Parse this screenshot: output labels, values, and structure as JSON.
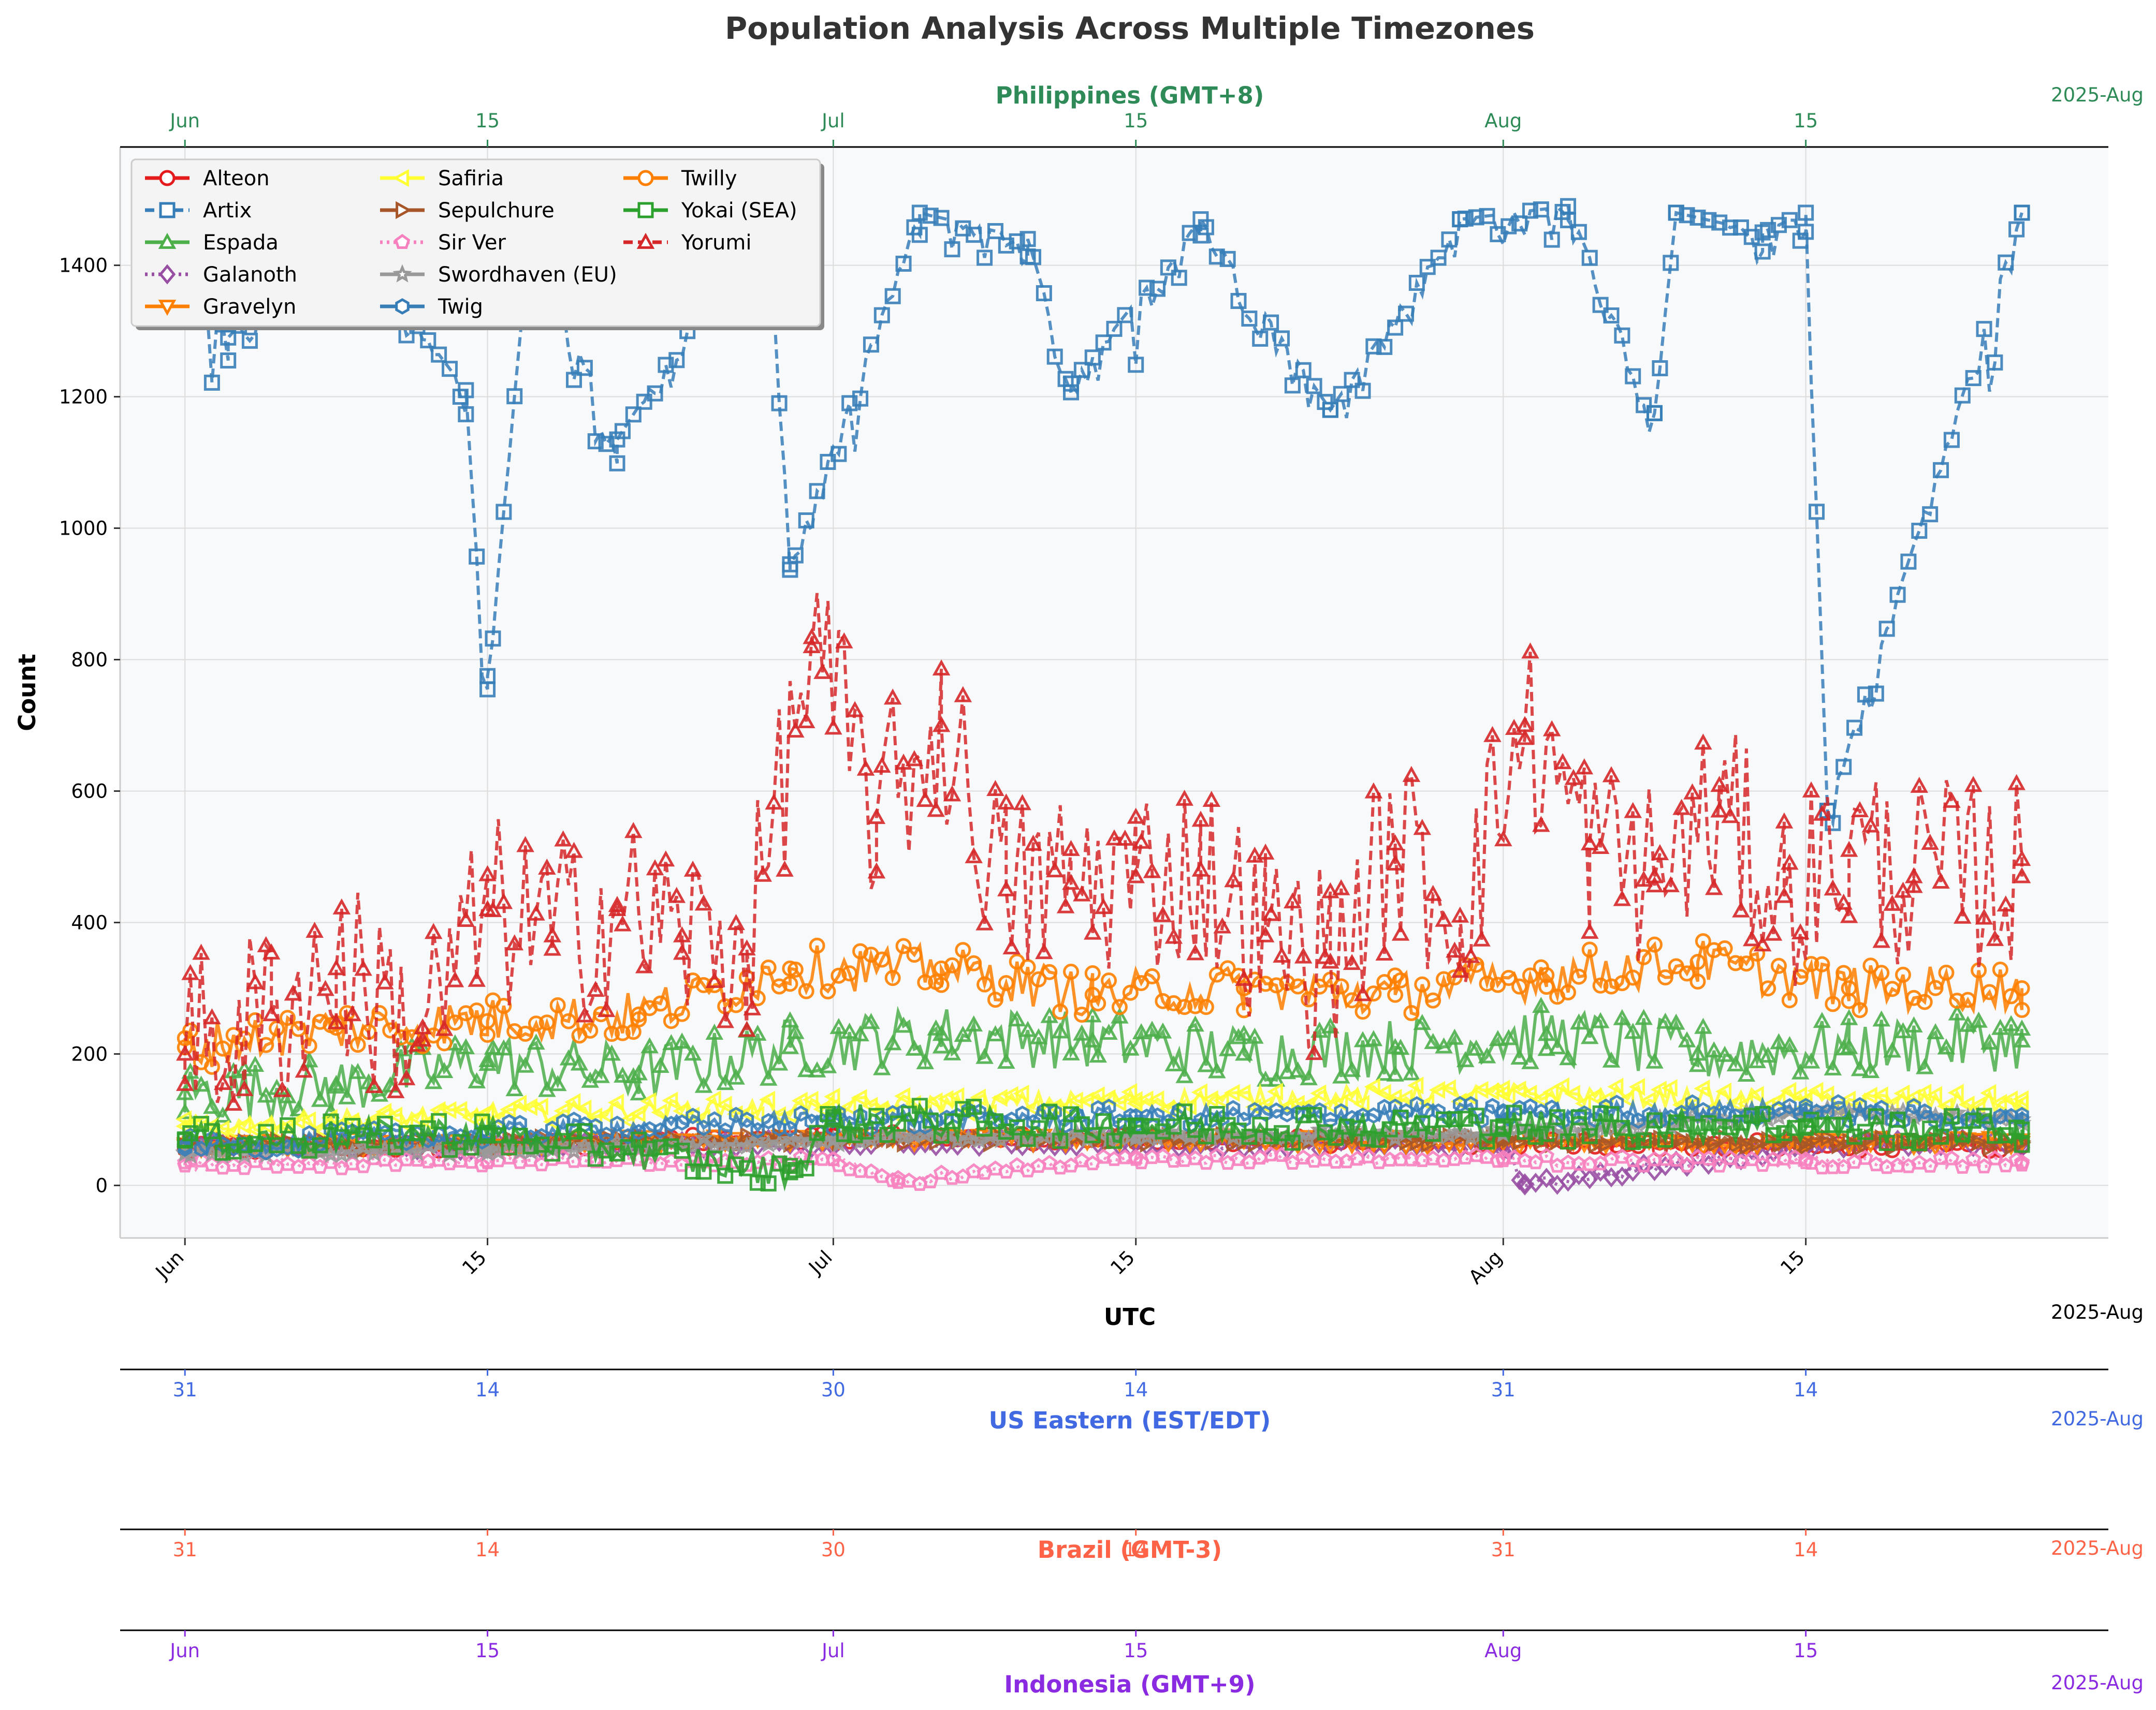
{
  "chart_data": {
    "type": "line",
    "title": "Population Analysis Across Multiple Timezones",
    "xlabel": "UTC",
    "ylabel": "Count",
    "ylim": [
      -80,
      1580
    ],
    "yticks": [
      0,
      200,
      400,
      600,
      800,
      1000,
      1200,
      1400
    ],
    "x_range": [
      "2025-05-29",
      "2025-08-29"
    ],
    "grid": true,
    "legend_placement": "top-left",
    "axes": [
      {
        "key": "utc",
        "title": "UTC",
        "color": "#000000",
        "year_label": "2025-Aug",
        "ticks": [
          {
            "date": "2025-06-01",
            "label": "Jun"
          },
          {
            "date": "2025-06-15",
            "label": "15"
          },
          {
            "date": "2025-07-01",
            "label": "Jul"
          },
          {
            "date": "2025-07-15",
            "label": "15"
          },
          {
            "date": "2025-08-01",
            "label": "Aug"
          },
          {
            "date": "2025-08-15",
            "label": "15"
          }
        ]
      },
      {
        "key": "philippines",
        "title": "Philippines (GMT+8)",
        "color": "#2e8b57",
        "year_label": "2025-Aug",
        "ticks": [
          {
            "date": "2025-06-01",
            "label": "Jun"
          },
          {
            "date": "2025-06-15",
            "label": "15"
          },
          {
            "date": "2025-07-01",
            "label": "Jul"
          },
          {
            "date": "2025-07-15",
            "label": "15"
          },
          {
            "date": "2025-08-01",
            "label": "Aug"
          },
          {
            "date": "2025-08-15",
            "label": "15"
          }
        ]
      },
      {
        "key": "us_eastern",
        "title": "US Eastern (EST/EDT)",
        "color": "#4169e1",
        "year_label": "2025-Aug",
        "ticks": [
          {
            "date": "2025-06-01",
            "label": "31"
          },
          {
            "date": "2025-06-15",
            "label": "14"
          },
          {
            "date": "2025-07-01",
            "label": "30"
          },
          {
            "date": "2025-07-15",
            "label": "14"
          },
          {
            "date": "2025-08-01",
            "label": "31"
          },
          {
            "date": "2025-08-15",
            "label": "14"
          }
        ]
      },
      {
        "key": "brazil",
        "title": "Brazil (GMT-3)",
        "color": "#ff6347",
        "year_label": "2025-Aug",
        "ticks": [
          {
            "date": "2025-06-01",
            "label": "31"
          },
          {
            "date": "2025-06-15",
            "label": "14"
          },
          {
            "date": "2025-07-01",
            "label": "30"
          },
          {
            "date": "2025-07-15",
            "label": "14"
          },
          {
            "date": "2025-08-01",
            "label": "31"
          },
          {
            "date": "2025-08-15",
            "label": "14"
          }
        ]
      },
      {
        "key": "indonesia",
        "title": "Indonesia (GMT+9)",
        "color": "#8a2be2",
        "year_label": "2025-Aug",
        "ticks": [
          {
            "date": "2025-06-01",
            "label": "Jun"
          },
          {
            "date": "2025-06-15",
            "label": "15"
          },
          {
            "date": "2025-07-01",
            "label": "Jul"
          },
          {
            "date": "2025-07-15",
            "label": "15"
          },
          {
            "date": "2025-08-01",
            "label": "Aug"
          },
          {
            "date": "2025-08-15",
            "label": "15"
          }
        ]
      }
    ],
    "series": [
      {
        "name": "Alteon",
        "color": "#e41a1c",
        "marker": "circle",
        "dash": "solid",
        "x": [
          "2025-06-01",
          "2025-06-15",
          "2025-07-01",
          "2025-07-15",
          "2025-08-01",
          "2025-08-15",
          "2025-08-25"
        ],
        "y": [
          55,
          60,
          75,
          70,
          65,
          60,
          60
        ]
      },
      {
        "name": "Artix",
        "color": "#377eb8",
        "marker": "square",
        "dash": "dashed",
        "x": [
          "2025-06-01",
          "2025-06-03",
          "2025-06-08",
          "2025-06-14",
          "2025-06-15",
          "2025-06-17",
          "2025-06-21",
          "2025-06-28",
          "2025-06-29",
          "2025-07-05",
          "2025-07-10",
          "2025-07-12",
          "2025-07-18",
          "2025-07-24",
          "2025-07-30",
          "2025-08-04",
          "2025-08-08",
          "2025-08-09",
          "2025-08-13",
          "2025-08-15",
          "2025-08-16",
          "2025-08-25"
        ],
        "y": [
          1450,
          1290,
          1470,
          1210,
          775,
          1460,
          1135,
          1490,
          945,
          1480,
          1440,
          1220,
          1470,
          1180,
          1470,
          1490,
          1175,
          1480,
          1450,
          1480,
          570,
          1480
        ]
      },
      {
        "name": "Espada",
        "color": "#4daf4a",
        "marker": "triangle-up",
        "dash": "solid",
        "x": [
          "2025-06-01",
          "2025-06-08",
          "2025-06-15",
          "2025-06-22",
          "2025-06-29",
          "2025-07-06",
          "2025-07-13",
          "2025-07-20",
          "2025-07-27",
          "2025-08-03",
          "2025-08-10",
          "2025-08-17",
          "2025-08-25"
        ],
        "y": [
          140,
          150,
          190,
          170,
          210,
          230,
          220,
          200,
          210,
          230,
          200,
          210,
          220
        ]
      },
      {
        "name": "Galanoth",
        "color": "#984ea3",
        "marker": "diamond",
        "dash": "dotted",
        "x": [
          "2025-06-01",
          "2025-06-15",
          "2025-07-01",
          "2025-07-15",
          "2025-08-01",
          "2025-08-02",
          "2025-08-15",
          "2025-08-25"
        ],
        "y": [
          60,
          60,
          65,
          65,
          60,
          0,
          60,
          65
        ]
      },
      {
        "name": "Gravelyn",
        "color": "#ff7f00",
        "marker": "triangle-down",
        "dash": "solid",
        "x": [
          "2025-06-01",
          "2025-06-15",
          "2025-07-01",
          "2025-07-15",
          "2025-08-01",
          "2025-08-15",
          "2025-08-25"
        ],
        "y": [
          60,
          65,
          70,
          70,
          65,
          65,
          65
        ]
      },
      {
        "name": "Safiria",
        "color": "#ffff33",
        "marker": "triangle-left",
        "dash": "solid",
        "x": [
          "2025-06-01",
          "2025-06-15",
          "2025-07-01",
          "2025-07-15",
          "2025-08-01",
          "2025-08-15",
          "2025-08-25"
        ],
        "y": [
          90,
          110,
          120,
          130,
          140,
          130,
          125
        ]
      },
      {
        "name": "Sepulchure",
        "color": "#a65628",
        "marker": "triangle-right",
        "dash": "solid",
        "x": [
          "2025-06-01",
          "2025-06-15",
          "2025-07-01",
          "2025-07-15",
          "2025-08-01",
          "2025-08-15",
          "2025-08-25"
        ],
        "y": [
          60,
          65,
          70,
          70,
          70,
          65,
          65
        ]
      },
      {
        "name": "Sir Ver",
        "color": "#f781bf",
        "marker": "pentagon",
        "dash": "dotted",
        "x": [
          "2025-06-01",
          "2025-06-15",
          "2025-07-01",
          "2025-07-04",
          "2025-07-15",
          "2025-08-01",
          "2025-08-15",
          "2025-08-25"
        ],
        "y": [
          30,
          35,
          40,
          5,
          40,
          38,
          35,
          35
        ]
      },
      {
        "name": "Swordhaven (EU)",
        "color": "#999999",
        "marker": "star",
        "dash": "solid",
        "x": [
          "2025-06-01",
          "2025-06-15",
          "2025-07-01",
          "2025-07-15",
          "2025-08-01",
          "2025-08-15",
          "2025-08-25"
        ],
        "y": [
          50,
          55,
          70,
          75,
          80,
          110,
          100
        ]
      },
      {
        "name": "Twig",
        "color": "#377eb8",
        "marker": "hexagon",
        "dash": "solid",
        "x": [
          "2025-06-01",
          "2025-06-15",
          "2025-07-01",
          "2025-07-15",
          "2025-08-01",
          "2025-08-15",
          "2025-08-25"
        ],
        "y": [
          60,
          80,
          100,
          105,
          110,
          115,
          100
        ]
      },
      {
        "name": "Twilly",
        "color": "#ff7f00",
        "marker": "circle",
        "dash": "solid",
        "x": [
          "2025-06-01",
          "2025-06-08",
          "2025-06-15",
          "2025-06-22",
          "2025-06-29",
          "2025-07-06",
          "2025-07-13",
          "2025-07-20",
          "2025-07-27",
          "2025-08-03",
          "2025-08-10",
          "2025-08-17",
          "2025-08-25"
        ],
        "y": [
          210,
          240,
          250,
          260,
          330,
          330,
          290,
          300,
          290,
          320,
          340,
          300,
          300
        ]
      },
      {
        "name": "Yokai (SEA)",
        "color": "#2ca02c",
        "marker": "square",
        "dash": "solid",
        "x": [
          "2025-06-01",
          "2025-06-15",
          "2025-06-29",
          "2025-07-01",
          "2025-07-15",
          "2025-08-01",
          "2025-08-15",
          "2025-08-25"
        ],
        "y": [
          70,
          80,
          20,
          100,
          90,
          90,
          90,
          85
        ]
      },
      {
        "name": "Yorumi",
        "color": "#d62728",
        "marker": "triangle-up",
        "dash": "dashed",
        "x": [
          "2025-06-01",
          "2025-06-05",
          "2025-06-08",
          "2025-06-12",
          "2025-06-15",
          "2025-06-18",
          "2025-06-21",
          "2025-06-24",
          "2025-06-27",
          "2025-06-30",
          "2025-07-03",
          "2025-07-06",
          "2025-07-09",
          "2025-07-12",
          "2025-07-15",
          "2025-07-18",
          "2025-07-21",
          "2025-07-24",
          "2025-07-27",
          "2025-07-30",
          "2025-08-02",
          "2025-08-05",
          "2025-08-08",
          "2025-08-11",
          "2025-08-14",
          "2025-08-17",
          "2025-08-20",
          "2025-08-25"
        ],
        "y": [
          200,
          260,
          330,
          240,
          420,
          380,
          420,
          380,
          360,
          820,
          560,
          700,
          450,
          460,
          470,
          480,
          380,
          340,
          520,
          410,
          700,
          520,
          470,
          570,
          440,
          510,
          470,
          470
        ]
      }
    ]
  }
}
